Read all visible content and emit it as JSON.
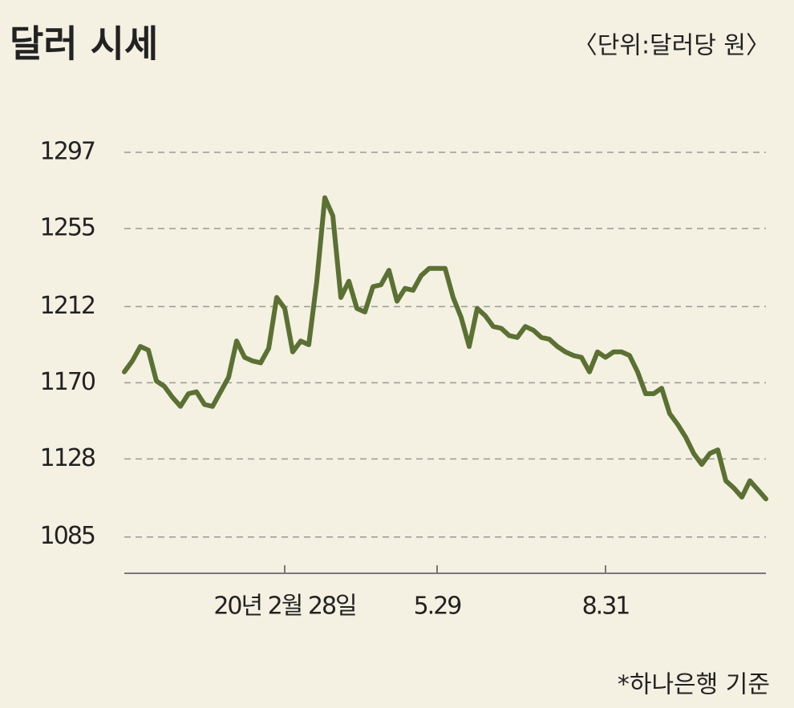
{
  "chart_data": {
    "type": "line",
    "title": "달러 시세",
    "subtitle": "〈단위:달러당 원〉",
    "note": "*하나은행 기준",
    "categories": [
      null,
      null,
      null,
      null,
      null,
      null,
      null,
      null,
      null,
      null,
      null,
      null,
      null,
      null,
      null,
      null,
      null,
      null,
      null,
      null,
      "20년 2월 28일",
      null,
      null,
      null,
      null,
      null,
      null,
      null,
      null,
      null,
      null,
      null,
      null,
      null,
      null,
      null,
      null,
      null,
      null,
      "5.29",
      null,
      null,
      null,
      null,
      null,
      null,
      null,
      null,
      null,
      null,
      null,
      null,
      null,
      null,
      null,
      null,
      null,
      null,
      null,
      null,
      "8.31",
      null,
      null,
      null,
      null,
      null,
      null,
      null,
      null,
      null,
      null,
      null,
      null,
      null,
      null,
      null,
      null,
      null,
      null,
      null,
      null
    ],
    "series": [
      {
        "name": "달러 시세",
        "color": "#5b7133",
        "values": [
          1176,
          1182,
          1190,
          1188,
          1171,
          1168,
          1162,
          1157,
          1164,
          1165,
          1158,
          1157,
          1165,
          1173,
          1193,
          1184,
          1182,
          1181,
          1189,
          1217,
          1211,
          1187,
          1193,
          1191,
          1226,
          1272,
          1262,
          1217,
          1226,
          1211,
          1209,
          1223,
          1224,
          1232,
          1215,
          1222,
          1221,
          1229,
          1233,
          1233,
          1233,
          1217,
          1206,
          1190,
          1211,
          1207,
          1201,
          1200,
          1196,
          1195,
          1201,
          1199,
          1195,
          1194,
          1190,
          1187,
          1185,
          1184,
          1176,
          1187,
          1184,
          1187,
          1187,
          1185,
          1176,
          1164,
          1164,
          1167,
          1153,
          1147,
          1140,
          1131,
          1125,
          1131,
          1133,
          1116,
          1112,
          1107,
          1116,
          1111,
          1106
        ]
      }
    ],
    "ylim": [
      1065,
      1297
    ],
    "yticks": [
      1085,
      1128,
      1170,
      1212,
      1255,
      1297
    ],
    "grid": true
  }
}
